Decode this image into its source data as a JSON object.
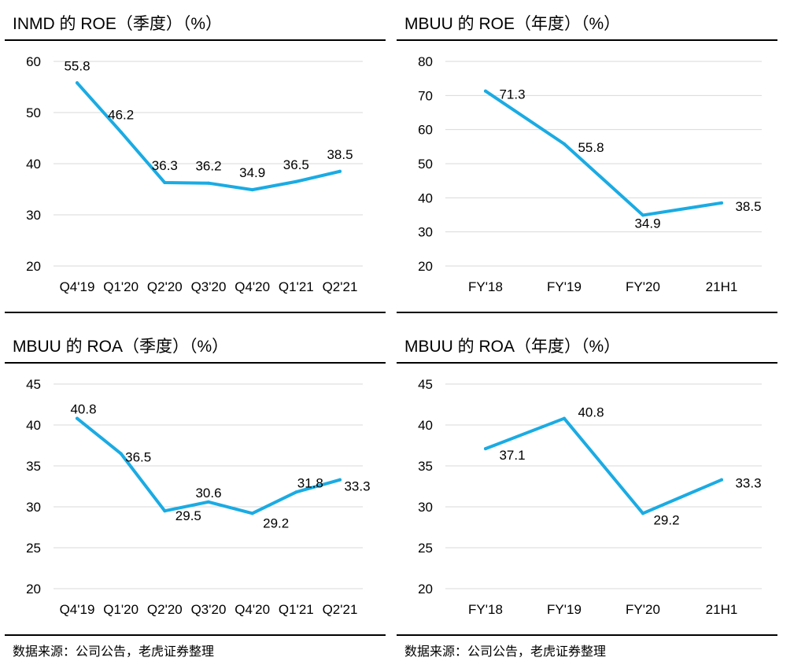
{
  "colors": {
    "line": "#1aabe3",
    "grid": "#d9d9d9",
    "rule": "#000000"
  },
  "panels": [
    {
      "title": "INMD 的 ROE（季度）（%）",
      "chart_data": {
        "type": "line",
        "categories": [
          "Q4'19",
          "Q1'20",
          "Q2'20",
          "Q3'20",
          "Q4'20",
          "Q1'21",
          "Q2'21"
        ],
        "values": [
          55.8,
          46.2,
          36.3,
          36.2,
          34.9,
          36.5,
          38.5
        ],
        "yticks": [
          20,
          30,
          40,
          50,
          60
        ],
        "ylim": [
          20,
          60
        ],
        "grid": true,
        "data_labels": true
      }
    },
    {
      "title": "MBUU 的 ROE（年度）（%）",
      "chart_data": {
        "type": "line",
        "categories": [
          "FY'18",
          "FY'19",
          "FY'20",
          "21H1"
        ],
        "values": [
          71.3,
          55.8,
          34.9,
          38.5
        ],
        "yticks": [
          20,
          30,
          40,
          50,
          60,
          70,
          80
        ],
        "ylim": [
          20,
          80
        ],
        "grid": true,
        "data_labels": true
      }
    },
    {
      "title": "MBUU 的 ROA（季度）（%）",
      "chart_data": {
        "type": "line",
        "categories": [
          "Q4'19",
          "Q1'20",
          "Q2'20",
          "Q3'20",
          "Q4'20",
          "Q1'21",
          "Q2'21"
        ],
        "values": [
          40.8,
          36.5,
          29.5,
          30.6,
          29.2,
          31.8,
          33.3
        ],
        "yticks": [
          20,
          25,
          30,
          35,
          40,
          45
        ],
        "ylim": [
          20,
          45
        ],
        "grid": true,
        "data_labels": true
      }
    },
    {
      "title": "MBUU 的 ROA（年度）（%）",
      "chart_data": {
        "type": "line",
        "categories": [
          "FY'18",
          "FY'19",
          "FY'20",
          "21H1"
        ],
        "values": [
          37.1,
          40.8,
          29.2,
          33.3
        ],
        "yticks": [
          20,
          25,
          30,
          35,
          40,
          45
        ],
        "ylim": [
          20,
          45
        ],
        "grid": true,
        "data_labels": true
      }
    }
  ],
  "sources": [
    "数据来源：公司公告，老虎证券整理",
    "数据来源：公司公告，老虎证券整理"
  ]
}
